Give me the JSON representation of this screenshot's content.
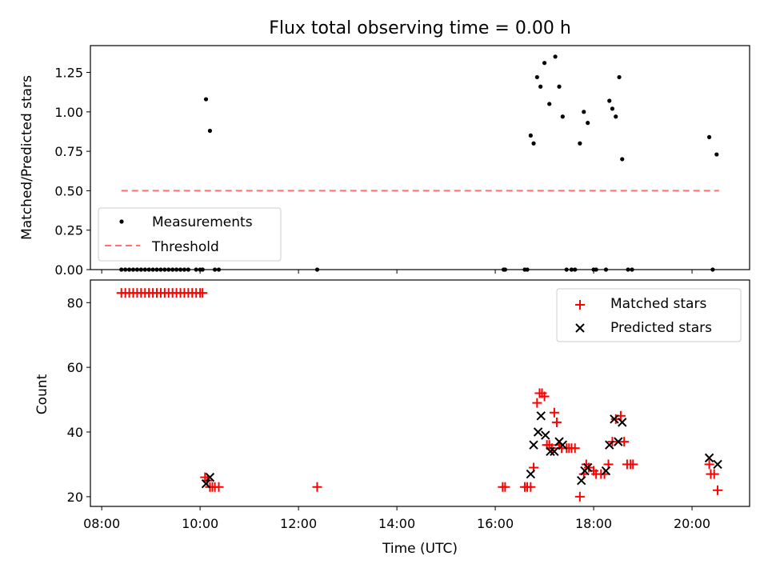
{
  "title": "Flux total observing time = 0.00 h",
  "colors": {
    "measurements": "#000000",
    "threshold": "#ff7070",
    "matched": "#ff0000",
    "predicted": "#000000"
  },
  "chart_data": [
    {
      "type": "scatter",
      "panel": "top",
      "title": "Flux total observing time = 0.00 h",
      "xlabel": "",
      "ylabel": "Matched/Predicted stars",
      "xlim": [
        7.77,
        21.17
      ],
      "ylim": [
        0.0,
        1.42
      ],
      "yticks": [
        0.0,
        0.25,
        0.5,
        0.75,
        1.0,
        1.25
      ],
      "ytick_labels": [
        "0.00",
        "0.25",
        "0.50",
        "0.75",
        "1.00",
        "1.25"
      ],
      "legend": {
        "position": "lower-left",
        "entries": [
          "Measurements",
          "Threshold"
        ]
      },
      "series": [
        {
          "name": "Measurements",
          "kind": "points",
          "x": [
            8.4,
            8.48,
            8.56,
            8.64,
            8.72,
            8.8,
            8.88,
            8.96,
            9.04,
            9.12,
            9.2,
            9.28,
            9.36,
            9.44,
            9.52,
            9.6,
            9.68,
            9.76,
            9.92,
            10.0,
            10.05,
            10.12,
            10.2,
            10.3,
            10.38,
            12.38,
            16.17,
            16.2,
            16.6,
            16.65,
            16.72,
            16.78,
            16.85,
            16.92,
            17.0,
            17.1,
            17.22,
            17.3,
            17.37,
            17.45,
            17.55,
            17.62,
            17.72,
            17.8,
            17.88,
            18.0,
            18.05,
            18.25,
            18.32,
            18.38,
            18.45,
            18.52,
            18.58,
            18.7,
            18.78,
            20.35,
            20.42,
            20.5
          ],
          "y": [
            0,
            0,
            0,
            0,
            0,
            0,
            0,
            0,
            0,
            0,
            0,
            0,
            0,
            0,
            0,
            0,
            0,
            0,
            0,
            0,
            0,
            1.08,
            0.88,
            0,
            0,
            0,
            0,
            0,
            0,
            0,
            0.85,
            0.8,
            1.22,
            1.16,
            1.31,
            1.05,
            1.35,
            1.16,
            0.97,
            0,
            0,
            0,
            0.8,
            1.0,
            0.93,
            0,
            0,
            0,
            1.07,
            1.02,
            0.97,
            1.22,
            0.7,
            0,
            0,
            0.84,
            0,
            0.73
          ]
        },
        {
          "name": "Threshold",
          "kind": "dashed-line",
          "x": [
            8.4,
            20.55
          ],
          "y": [
            0.5,
            0.5
          ]
        }
      ]
    },
    {
      "type": "scatter",
      "panel": "bottom",
      "xlabel": "Time (UTC)",
      "ylabel": "Count",
      "xlim": [
        7.77,
        21.17
      ],
      "ylim": [
        17.0,
        87.0
      ],
      "xticks": [
        8,
        10,
        12,
        14,
        16,
        18,
        20
      ],
      "xtick_labels": [
        "08:00",
        "10:00",
        "12:00",
        "14:00",
        "16:00",
        "18:00",
        "20:00"
      ],
      "yticks": [
        20,
        40,
        60,
        80
      ],
      "ytick_labels": [
        "20",
        "40",
        "60",
        "80"
      ],
      "legend": {
        "position": "top-right",
        "entries": [
          "Matched stars",
          "Predicted stars"
        ]
      },
      "series": [
        {
          "name": "Matched stars",
          "marker": "plus",
          "x": [
            8.4,
            8.48,
            8.56,
            8.64,
            8.72,
            8.8,
            8.88,
            8.96,
            9.04,
            9.12,
            9.2,
            9.28,
            9.36,
            9.44,
            9.52,
            9.6,
            9.68,
            9.76,
            9.84,
            9.92,
            10.0,
            10.05,
            10.1,
            10.15,
            10.2,
            10.25,
            10.3,
            10.38,
            12.38,
            16.15,
            16.2,
            16.6,
            16.65,
            16.72,
            16.78,
            16.85,
            16.9,
            16.95,
            17.0,
            17.05,
            17.1,
            17.15,
            17.2,
            17.25,
            17.3,
            17.35,
            17.45,
            17.5,
            17.55,
            17.62,
            17.72,
            17.8,
            17.85,
            17.9,
            18.0,
            18.05,
            18.15,
            18.22,
            18.3,
            18.38,
            18.45,
            18.55,
            18.62,
            18.68,
            18.75,
            18.8,
            20.35,
            20.38,
            20.45,
            20.52
          ],
          "y": [
            83,
            83,
            83,
            83,
            83,
            83,
            83,
            83,
            83,
            83,
            83,
            83,
            83,
            83,
            83,
            83,
            83,
            83,
            83,
            83,
            83,
            83,
            26,
            25,
            23,
            23,
            23,
            23,
            23,
            23,
            23,
            23,
            23,
            23,
            29,
            49,
            52,
            52,
            51,
            36,
            36,
            35,
            46,
            43,
            36,
            35,
            35,
            35,
            35,
            35,
            20,
            27,
            30,
            29,
            28,
            27,
            27,
            27,
            30,
            37,
            44,
            45,
            37,
            30,
            30,
            30,
            30,
            27,
            27,
            22
          ]
        },
        {
          "name": "Predicted stars",
          "marker": "x",
          "x": [
            10.12,
            10.2,
            16.72,
            16.78,
            16.87,
            16.93,
            17.02,
            17.12,
            17.2,
            17.3,
            17.37,
            17.75,
            17.82,
            17.88,
            18.25,
            18.32,
            18.42,
            18.5,
            18.58,
            20.35,
            20.52
          ],
          "y": [
            24,
            26,
            27,
            36,
            40,
            45,
            39,
            34,
            34,
            37,
            36,
            25,
            28,
            29,
            28,
            36,
            44,
            37,
            43,
            32,
            30
          ]
        }
      ]
    }
  ]
}
